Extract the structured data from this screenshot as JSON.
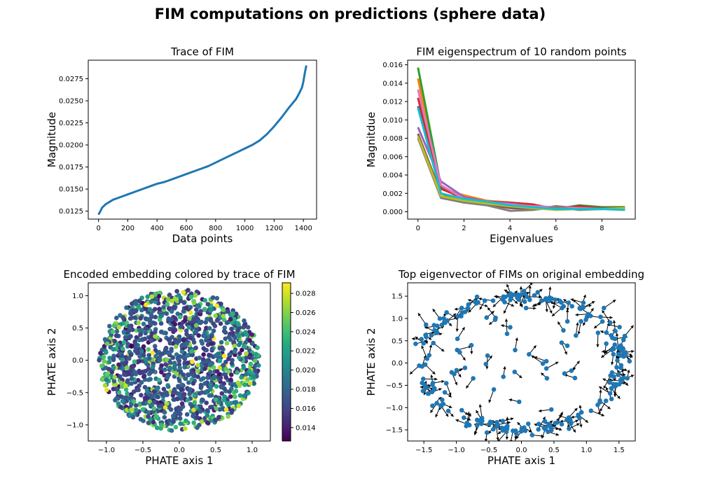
{
  "suptitle": "FIM computations on predictions (sphere data)",
  "chart_data": [
    {
      "type": "line",
      "title": "Trace of FIM",
      "xlabel": "Data points",
      "ylabel": "Magnitude",
      "xlim": [
        -70,
        1490
      ],
      "ylim": [
        0.0116,
        0.0296
      ],
      "xticks": [
        0,
        200,
        400,
        600,
        800,
        1000,
        1200,
        1400
      ],
      "yticks": [
        0.0125,
        0.015,
        0.0175,
        0.02,
        0.0225,
        0.025,
        0.0275
      ],
      "ytick_labels": [
        "0.0125",
        "0.0150",
        "0.0175",
        "0.0200",
        "0.0225",
        "0.0250",
        "0.0275"
      ],
      "color": "#1f77b4",
      "series": [
        {
          "x": [
            0,
            10,
            25,
            50,
            80,
            100,
            150,
            200,
            250,
            300,
            350,
            400,
            450,
            500,
            550,
            600,
            650,
            700,
            750,
            800,
            850,
            900,
            950,
            1000,
            1050,
            1100,
            1150,
            1200,
            1250,
            1300,
            1350,
            1370,
            1390,
            1400,
            1410,
            1420
          ],
          "y": [
            0.0121,
            0.0124,
            0.0129,
            0.0133,
            0.0136,
            0.0138,
            0.0141,
            0.0144,
            0.0147,
            0.015,
            0.0153,
            0.0156,
            0.0158,
            0.0161,
            0.0164,
            0.0167,
            0.017,
            0.0173,
            0.0176,
            0.018,
            0.0184,
            0.0188,
            0.0192,
            0.0196,
            0.02,
            0.0205,
            0.0212,
            0.0221,
            0.0231,
            0.0242,
            0.0252,
            0.0258,
            0.0265,
            0.0272,
            0.0282,
            0.029
          ]
        }
      ]
    },
    {
      "type": "line",
      "title": "FIM eigenspectrum of 10 random points",
      "xlabel": "Eigenvalues",
      "ylabel": "Magnitdue",
      "xlim": [
        -0.45,
        9.45
      ],
      "ylim": [
        -0.0008,
        0.0165
      ],
      "xticks": [
        0,
        2,
        4,
        6,
        8
      ],
      "yticks": [
        0.0,
        0.002,
        0.004,
        0.006,
        0.008,
        0.01,
        0.012,
        0.014,
        0.016
      ],
      "ytick_labels": [
        "0.000",
        "0.002",
        "0.004",
        "0.006",
        "0.008",
        "0.010",
        "0.012",
        "0.014",
        "0.016"
      ],
      "x": [
        0,
        1,
        2,
        3,
        4,
        5,
        6,
        7,
        8,
        9
      ],
      "series": [
        {
          "color": "#1f77b4",
          "values": [
            0.0115,
            0.0027,
            0.0013,
            0.001,
            0.0008,
            0.0006,
            0.0004,
            0.0004,
            0.0004,
            0.0003
          ]
        },
        {
          "color": "#ff7f0e",
          "values": [
            0.0145,
            0.0025,
            0.0018,
            0.0012,
            0.001,
            0.0007,
            0.0004,
            0.0004,
            0.0003,
            0.0004
          ]
        },
        {
          "color": "#2ca02c",
          "values": [
            0.0157,
            0.0028,
            0.0013,
            0.0009,
            0.0008,
            0.0006,
            0.0003,
            0.0007,
            0.0005,
            0.0005
          ]
        },
        {
          "color": "#d62728",
          "values": [
            0.0124,
            0.0025,
            0.0015,
            0.0011,
            0.001,
            0.0008,
            0.0003,
            0.0006,
            0.0004,
            0.0004
          ]
        },
        {
          "color": "#9467bd",
          "values": [
            0.0092,
            0.0033,
            0.0016,
            0.0011,
            0.0009,
            0.0005,
            0.0004,
            0.0004,
            0.0004,
            0.0003
          ]
        },
        {
          "color": "#8c564b",
          "values": [
            0.0085,
            0.002,
            0.0011,
            0.0008,
            0.0004,
            0.0003,
            0.0006,
            0.0004,
            0.0004,
            0.0003
          ]
        },
        {
          "color": "#e377c2",
          "values": [
            0.0133,
            0.0029,
            0.0014,
            0.001,
            0.0008,
            0.0006,
            0.0005,
            0.0004,
            0.0003,
            0.0004
          ]
        },
        {
          "color": "#7f7f7f",
          "values": [
            0.008,
            0.0015,
            0.001,
            0.0007,
            0.0001,
            0.0002,
            0.0005,
            0.0002,
            0.0003,
            0.0004
          ]
        },
        {
          "color": "#bcbd22",
          "values": [
            0.0082,
            0.0017,
            0.0012,
            0.0009,
            0.0006,
            0.0004,
            0.0002,
            0.0003,
            0.0003,
            0.0004
          ]
        },
        {
          "color": "#17becf",
          "values": [
            0.0113,
            0.002,
            0.0014,
            0.0011,
            0.0007,
            0.0005,
            0.0003,
            0.0003,
            0.0003,
            0.0002
          ]
        }
      ]
    },
    {
      "type": "scatter",
      "title": "Encoded embedding colored by trace of FIM",
      "xlabel": "PHATE axis 1",
      "ylabel": "PHATE axis 2",
      "xlim": [
        -1.25,
        1.25
      ],
      "ylim": [
        -1.25,
        1.2
      ],
      "xticks": [
        -1.0,
        -0.5,
        0.0,
        0.5,
        1.0
      ],
      "xtick_labels": [
        "−1.0",
        "−0.5",
        "0.0",
        "0.5",
        "1.0"
      ],
      "yticks": [
        -1.0,
        -0.5,
        0.0,
        0.5,
        1.0
      ],
      "ytick_labels": [
        "−1.0",
        "−0.5",
        "0.0",
        "0.5",
        "1.0"
      ],
      "shape": "filled disk of radius ~1.1 centred at (0, 0)",
      "n_points": 1400,
      "colormap": "viridis",
      "colorbar": {
        "range": [
          0.0126,
          0.0291
        ],
        "ticks": [
          0.014,
          0.016,
          0.018,
          0.02,
          0.022,
          0.024,
          0.026,
          0.028
        ],
        "tick_labels": [
          "0.014",
          "0.016",
          "0.018",
          "0.020",
          "0.022",
          "0.024",
          "0.026",
          "0.028"
        ]
      }
    },
    {
      "type": "scatter",
      "title": "Top eigenvector of FIMs on original embedding",
      "xlabel": "PHATE axis 1",
      "ylabel": "PHATE axis 2",
      "xlim": [
        -1.75,
        1.75
      ],
      "ylim": [
        -1.75,
        1.8
      ],
      "xticks": [
        -1.5,
        -1.0,
        -0.5,
        0.0,
        0.5,
        1.0,
        1.5
      ],
      "xtick_labels": [
        "−1.5",
        "−1.0",
        "−0.5",
        "0.0",
        "0.5",
        "1.0",
        "1.5"
      ],
      "yticks": [
        -1.5,
        -1.0,
        -0.5,
        0.0,
        0.5,
        1.0,
        1.5
      ],
      "ytick_labels": [
        "−1.5",
        "−1.0",
        "−0.5",
        "0.0",
        "0.5",
        "1.0",
        "1.5"
      ],
      "shape": "ring of radius ~1.5 centred at (0, 0) with scattered interior points and an arrow (top eigenvector) at each point",
      "n_points": 260,
      "point_color": "#1f77b4",
      "arrow_color": "#000000"
    }
  ]
}
